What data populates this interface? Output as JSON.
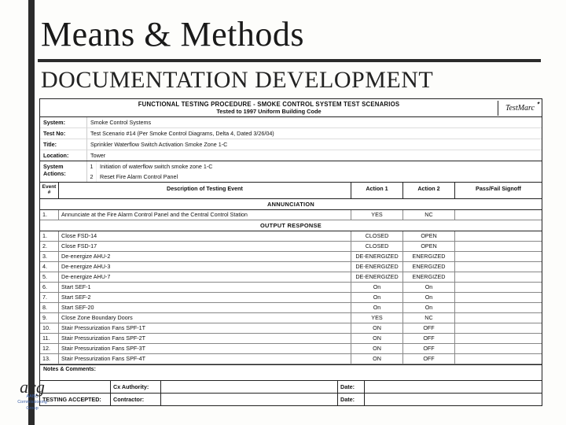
{
  "title": "Means & Methods",
  "subtitle": "DOCUMENTATION DEVELOPMENT",
  "form": {
    "heading1": "FUNCTIONAL TESTING PROCEDURE - SMOKE CONTROL SYSTEM TEST SCENARIOS",
    "heading2": "Tested to 1997 Uniform Building Code",
    "logo": "TestMarc",
    "meta": {
      "system_lab": "System:",
      "system": "Smoke Control Systems",
      "testno_lab": "Test No:",
      "testno": "Test Scenario #14 (Per Smoke Control Diagrams, Delta 4, Dated 3/26/04)",
      "title_lab": "Title:",
      "title": "Sprinkler Waterflow Switch Activation Smoke Zone 1-C",
      "location_lab": "Location:",
      "location": "Tower"
    },
    "sysact_lab": "System Actions:",
    "sysact": [
      {
        "n": "1",
        "t": "Initiation of waterflow switch smoke zone 1-C"
      },
      {
        "n": "2",
        "t": "Reset Fire Alarm Control Panel"
      }
    ],
    "hdr": {
      "event": "Event\n#",
      "desc": "Description of Testing Event",
      "a1": "Action 1",
      "a2": "Action 2",
      "pf": "Pass/Fail Signoff"
    },
    "sec_ann": "ANNUNCIATION",
    "ann_rows": [
      {
        "n": "1.",
        "d": "Annunciate at the Fire Alarm Control Panel and the Central Control Station",
        "a1": "YES",
        "a2": "NC"
      }
    ],
    "sec_out": "OUTPUT RESPONSE",
    "out_rows": [
      {
        "n": "1.",
        "d": "Close FSD-14",
        "a1": "CLOSED",
        "a2": "OPEN"
      },
      {
        "n": "2.",
        "d": "Close FSD-17",
        "a1": "CLOSED",
        "a2": "OPEN"
      },
      {
        "n": "3.",
        "d": "De-energize AHU-2",
        "a1": "DE-ENERGIZED",
        "a2": "ENERGIZED"
      },
      {
        "n": "4.",
        "d": "De-energize AHU-3",
        "a1": "DE-ENERGIZED",
        "a2": "ENERGIZED"
      },
      {
        "n": "5.",
        "d": "De-energize AHU-7",
        "a1": "DE-ENERGIZED",
        "a2": "ENERGIZED"
      },
      {
        "n": "6.",
        "d": "Start SEF-1",
        "a1": "On",
        "a2": "On"
      },
      {
        "n": "7.",
        "d": "Start SEF-2",
        "a1": "On",
        "a2": "On"
      },
      {
        "n": "8.",
        "d": "Start SEF-20",
        "a1": "On",
        "a2": "On"
      },
      {
        "n": "9.",
        "d": "Close Zone Boundary Doors",
        "a1": "YES",
        "a2": "NC"
      },
      {
        "n": "10.",
        "d": "Stair Pressurization Fans SPF-1T",
        "a1": "ON",
        "a2": "OFF"
      },
      {
        "n": "11.",
        "d": "Stair Pressurization Fans SPF-2T",
        "a1": "ON",
        "a2": "OFF"
      },
      {
        "n": "12.",
        "d": "Stair Pressurization Fans SPF-3T",
        "a1": "ON",
        "a2": "OFF"
      },
      {
        "n": "13.",
        "d": "Stair Pressurization Fans SPF-4T",
        "a1": "ON",
        "a2": "OFF"
      }
    ],
    "notes_lab": "Notes & Comments:",
    "sig": {
      "row1_l": "",
      "row1_lab": "Cx Authority:",
      "row1_dlab": "Date:",
      "row2_l": "TESTING ACCEPTED:",
      "row2_lab": "Contractor:",
      "row2_dlab": "Date:"
    }
  },
  "acg": {
    "big": "acg",
    "line1": "AABC",
    "line2": "Commissioning",
    "line3": "Group"
  }
}
